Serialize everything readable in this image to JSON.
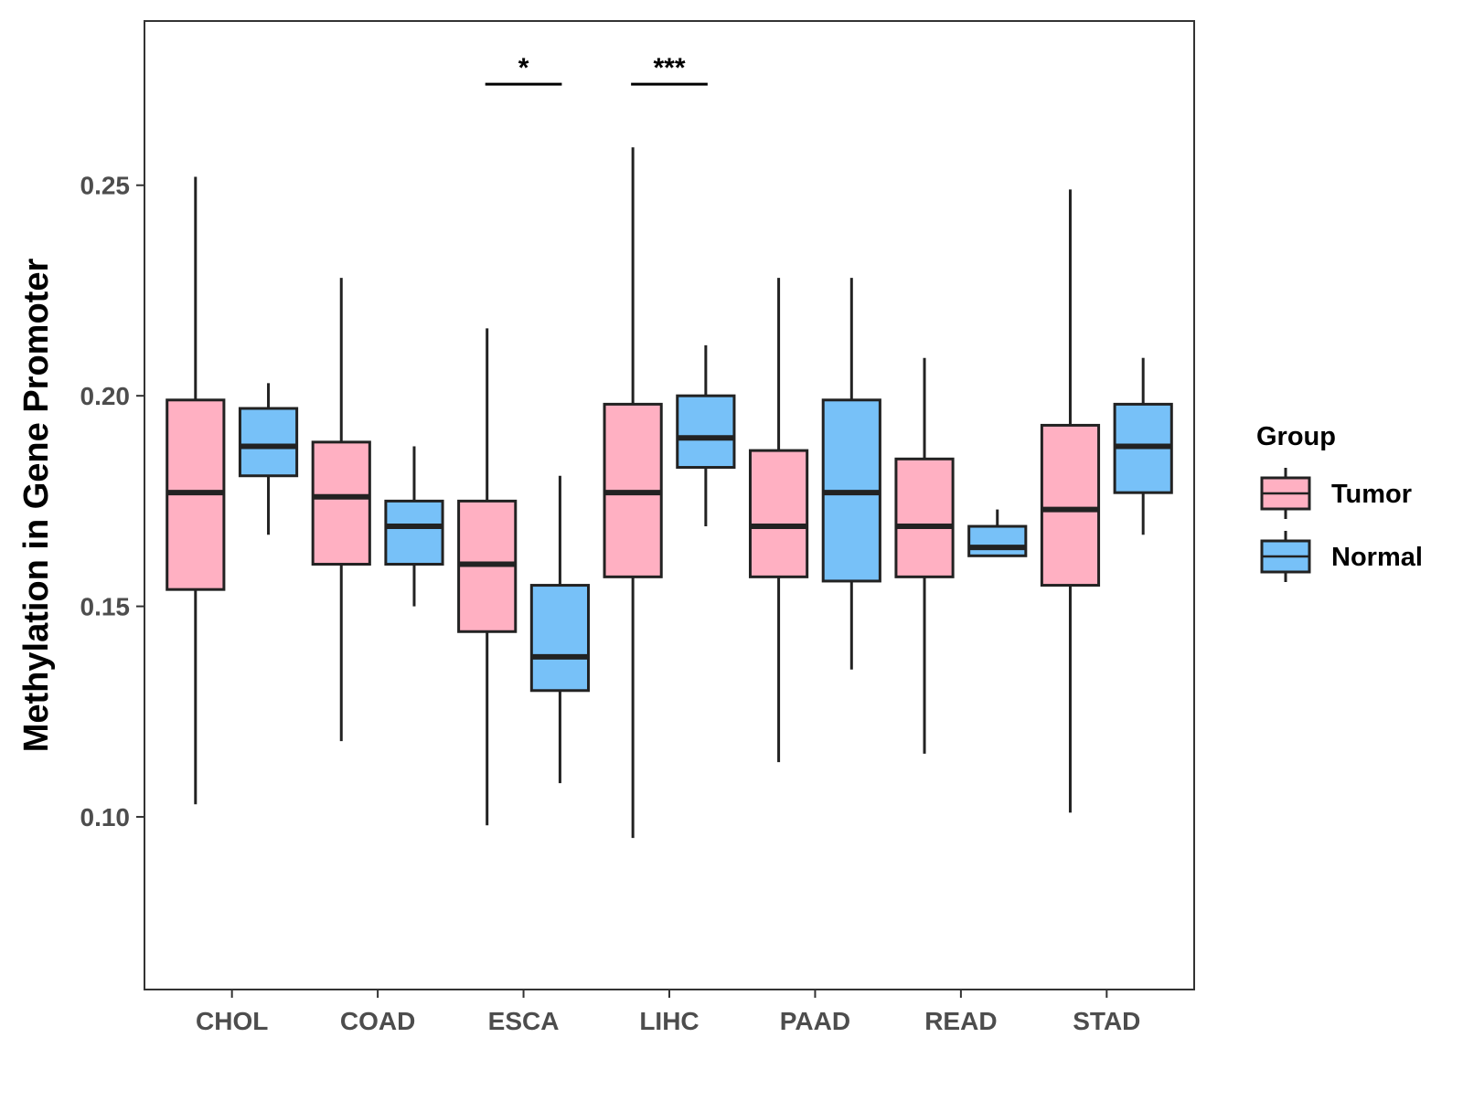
{
  "chart_data": {
    "type": "boxplot",
    "title": "",
    "xlabel": "",
    "ylabel": "Methylation in Gene Promoter",
    "ylim": [
      0.059,
      0.289
    ],
    "y_ticks": [
      0.1,
      0.15,
      0.2,
      0.25
    ],
    "y_tick_labels": [
      "0.10",
      "0.15",
      "0.20",
      "0.25"
    ],
    "categories": [
      "CHOL",
      "COAD",
      "ESCA",
      "LIHC",
      "PAAD",
      "READ",
      "STAD"
    ],
    "legend": {
      "title": "Group",
      "placement": "right"
    },
    "series": [
      {
        "name": "Tumor",
        "color": "#FFB0C2",
        "boxes": [
          {
            "min": 0.103,
            "q1": 0.154,
            "median": 0.177,
            "q3": 0.199,
            "max": 0.252
          },
          {
            "min": 0.118,
            "q1": 0.16,
            "median": 0.176,
            "q3": 0.189,
            "max": 0.228
          },
          {
            "min": 0.098,
            "q1": 0.144,
            "median": 0.16,
            "q3": 0.175,
            "max": 0.216
          },
          {
            "min": 0.095,
            "q1": 0.157,
            "median": 0.177,
            "q3": 0.198,
            "max": 0.259
          },
          {
            "min": 0.113,
            "q1": 0.157,
            "median": 0.169,
            "q3": 0.187,
            "max": 0.228
          },
          {
            "min": 0.115,
            "q1": 0.157,
            "median": 0.169,
            "q3": 0.185,
            "max": 0.209
          },
          {
            "min": 0.101,
            "q1": 0.155,
            "median": 0.173,
            "q3": 0.193,
            "max": 0.249
          }
        ]
      },
      {
        "name": "Normal",
        "color": "#77C1F8",
        "boxes": [
          {
            "min": 0.167,
            "q1": 0.181,
            "median": 0.188,
            "q3": 0.197,
            "max": 0.203
          },
          {
            "min": 0.15,
            "q1": 0.16,
            "median": 0.169,
            "q3": 0.175,
            "max": 0.188
          },
          {
            "min": 0.108,
            "q1": 0.13,
            "median": 0.138,
            "q3": 0.155,
            "max": 0.181
          },
          {
            "min": 0.169,
            "q1": 0.183,
            "median": 0.19,
            "q3": 0.2,
            "max": 0.212
          },
          {
            "min": 0.135,
            "q1": 0.156,
            "median": 0.177,
            "q3": 0.199,
            "max": 0.228
          },
          {
            "min": 0.162,
            "q1": 0.162,
            "median": 0.164,
            "q3": 0.169,
            "max": 0.173
          },
          {
            "min": 0.167,
            "q1": 0.177,
            "median": 0.188,
            "q3": 0.198,
            "max": 0.209
          }
        ]
      }
    ],
    "annotations": [
      {
        "category": "ESCA",
        "label": "*",
        "y": 0.274
      },
      {
        "category": "LIHC",
        "label": "***",
        "y": 0.274
      }
    ]
  }
}
